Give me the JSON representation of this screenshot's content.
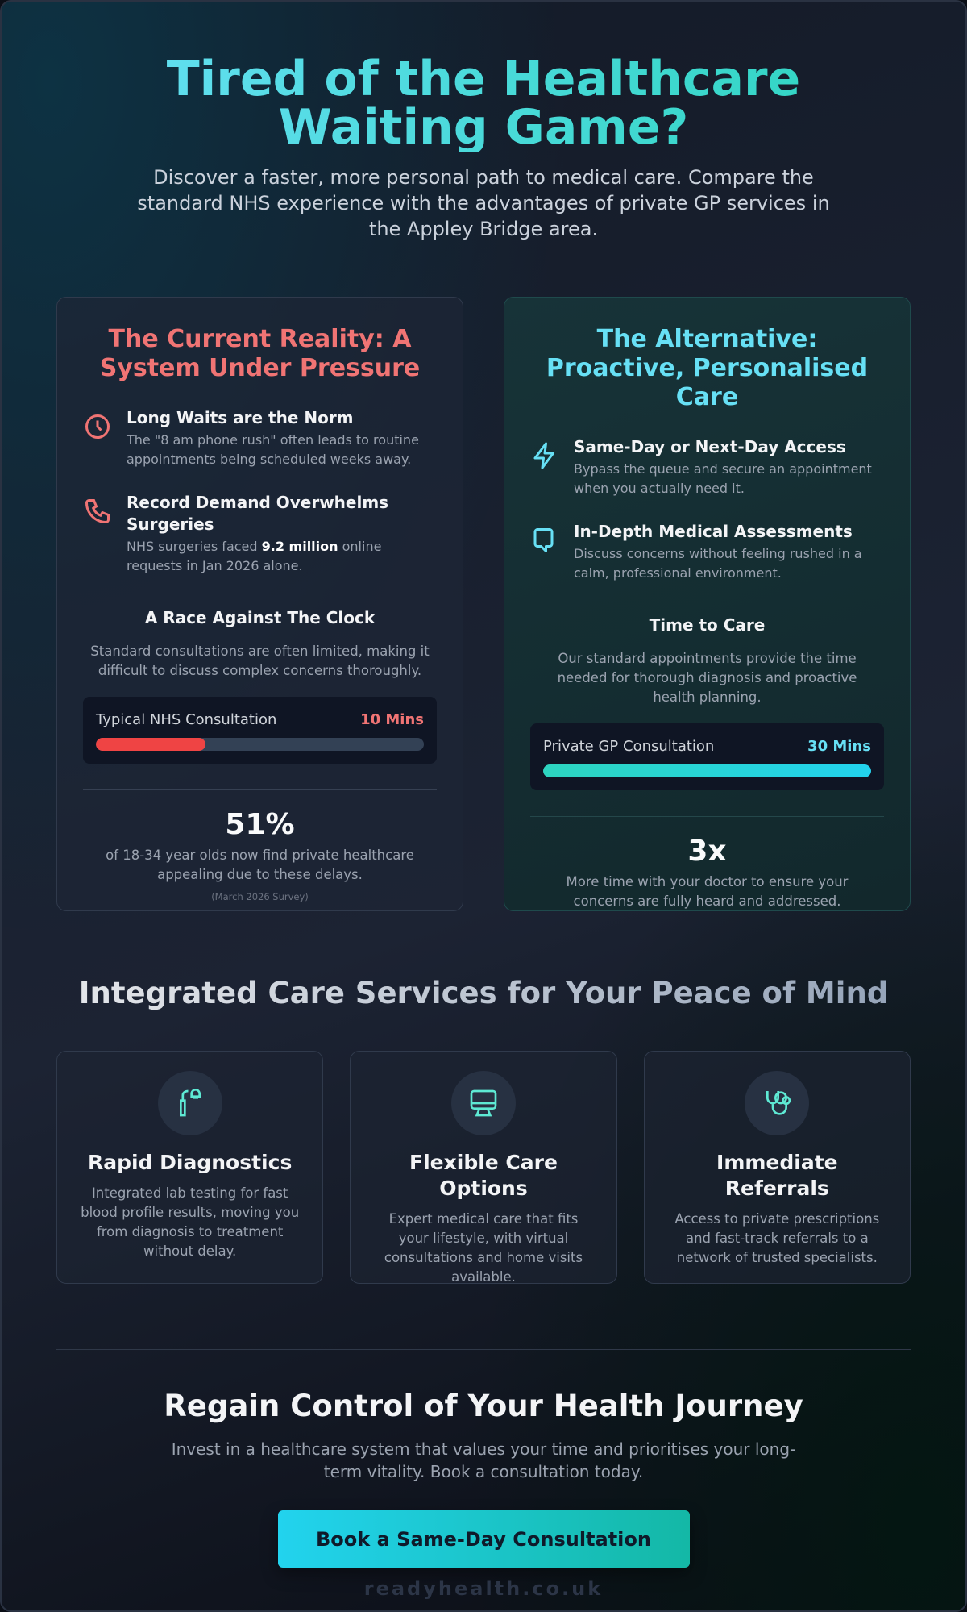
{
  "header": {
    "title": "Tired of the Healthcare Waiting Game?",
    "subtitle": "Discover a faster, more personal path to medical care. Compare the standard NHS experience with the advantages of private GP services in the Appley Bridge area."
  },
  "comparison": [
    {
      "title": "The Current Reality: A System Under Pressure",
      "points": [
        {
          "title": "Long Waits are the Norm",
          "text": [
            "The \"8 am phone rush\" often leads to routine appointments being scheduled weeks away."
          ]
        },
        {
          "title": "Record Demand Overwhelms Surgeries",
          "text": [
            "NHS surgeries faced ",
            "9.2 million",
            " online requests in Jan 2026 alone."
          ]
        }
      ],
      "section_title": "A Race Against The Clock",
      "section_text": "Standard consultations are often limited, making it difficult to discuss complex concerns thoroughly.",
      "bar": {
        "label": "Typical NHS Consultation",
        "value": 10,
        "value_label": "10 Mins"
      },
      "stat": {
        "value": "51%",
        "text": "of 18-34 year olds now find private healthcare appealing due to these delays.",
        "note": "(March 2026 Survey)"
      }
    },
    {
      "title": "The Alternative: Proactive, Personalised Care",
      "points": [
        {
          "title": "Same-Day or Next-Day Access",
          "text": [
            "Bypass the queue and secure an appointment when you actually need it."
          ]
        },
        {
          "title": "In-Depth Medical Assessments",
          "text": [
            "Discuss concerns without feeling rushed in a calm, professional environment."
          ]
        }
      ],
      "section_title": "Time to Care",
      "section_text": "Our standard appointments provide the time needed for thorough diagnosis and proactive health planning.",
      "bar": {
        "label": "Private GP Consultation",
        "value": 30,
        "value_label": "30 Mins"
      },
      "stat": {
        "value": "3x",
        "text": "More time with your doctor to ensure your concerns are fully heard and addressed."
      }
    }
  ],
  "services": {
    "title": "Integrated Care Services for Your Peace of Mind",
    "items": [
      {
        "title": "Rapid Diagnostics",
        "text": "Integrated lab testing for fast blood profile results, moving you from diagnosis to treatment without delay."
      },
      {
        "title": "Flexible Care Options",
        "text": "Expert medical care that fits your lifestyle, with virtual consultations and home visits available."
      },
      {
        "title": "Immediate Referrals",
        "text": "Access to private prescriptions and fast-track referrals to a network of trusted specialists."
      }
    ]
  },
  "cta": {
    "title": "Regain Control of Your Health Journey",
    "text": "Invest in a healthcare system that values your time and prioritises your long-term vitality. Book a consultation today.",
    "button": "Book a Same-Day Consultation"
  },
  "footer": "readyhealth.co.uk"
}
